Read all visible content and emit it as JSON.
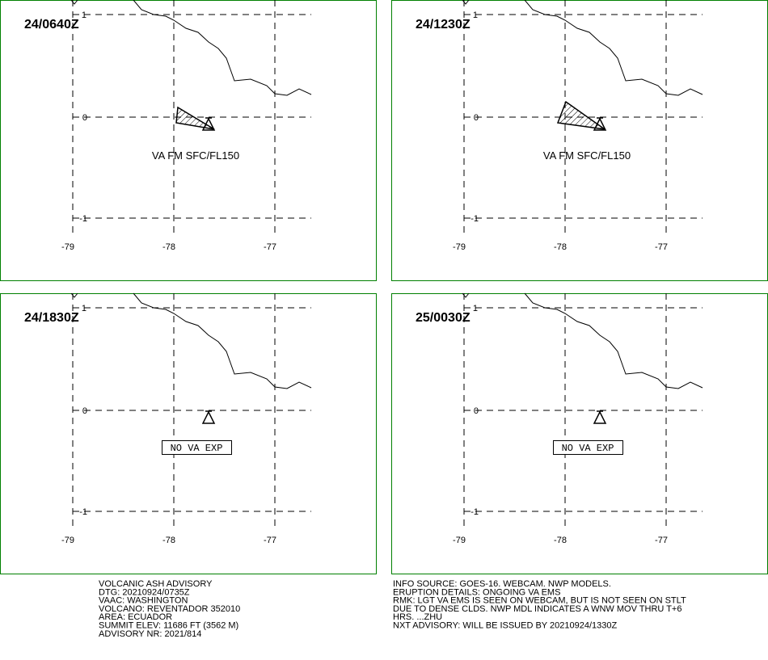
{
  "panels": [
    {
      "time": "24/0640Z",
      "label": "VA FM SFC/FL150"
    },
    {
      "time": "24/1230Z",
      "label": "VA FM SFC/FL150"
    },
    {
      "time": "24/1830Z",
      "label": "NO VA EXP"
    },
    {
      "time": "25/0030Z",
      "label": "NO VA EXP"
    }
  ],
  "lat_labels": [
    "1",
    "0",
    "-1"
  ],
  "lon_labels": [
    "-79",
    "-78",
    "-77"
  ],
  "text_left": [
    "VOLCANIC ASH ADVISORY",
    "DTG: 20210924/0735Z",
    "VAAC: WASHINGTON",
    "VOLCANO: REVENTADOR 352010",
    "AREA: ECUADOR",
    "SUMMIT ELEV: 11686 FT (3562 M)",
    "ADVISORY NR: 2021/814"
  ],
  "text_right": [
    "INFO SOURCE: GOES-16. WEBCAM. NWP MODELS.",
    "ERUPTION DETAILS: ONGOING VA EMS",
    "RMK: LGT VA EMS IS SEEN ON WEBCAM, BUT IS NOT SEEN ON STLT",
    "DUE TO DENSE CLDS. NWP MDL INDICATES A WNW MOV THRU T+6",
    "HRS. ...ZHU",
    "NXT ADVISORY: WILL BE ISSUED BY 20210924/1330Z"
  ]
}
